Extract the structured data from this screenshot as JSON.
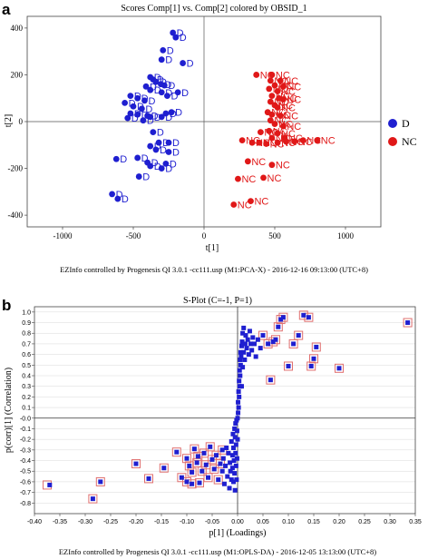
{
  "panel_a": {
    "letter": "a",
    "footer": "EZInfo controlled by Progenesis QI 3.0.1 -cc111.usp (M1:PCA-X) - 2016-12-16 09:13:00 (UTC+8)"
  },
  "panel_b": {
    "letter": "b",
    "footer": "EZInfo controlled by Progenesis QI 3.0.1 -cc111.usp (M1:OPLS-DA) - 2016-12-05 13:13:00 (UTC+8)"
  },
  "chart_data": [
    {
      "type": "scatter",
      "title": "Scores Comp[1] vs. Comp[2] colored by OBSID_1",
      "xlabel": "t[1]",
      "ylabel": "t[2]",
      "xlim": [
        -1250,
        1250
      ],
      "ylim": [
        -450,
        450
      ],
      "xticks": [
        -1000,
        -500,
        0,
        500,
        1000
      ],
      "yticks": [
        -400,
        -200,
        0,
        200,
        400
      ],
      "grid": false,
      "legend_position": "right",
      "colors": {
        "D": "#1f1fd0",
        "NC": "#e01818"
      },
      "series": [
        {
          "name": "D",
          "points": [
            [
              -220,
              380
            ],
            [
              -200,
              360
            ],
            [
              -290,
              305
            ],
            [
              -300,
              265
            ],
            [
              -150,
              250
            ],
            [
              -380,
              190
            ],
            [
              -360,
              180
            ],
            [
              -340,
              170
            ],
            [
              -305,
              160
            ],
            [
              -280,
              155
            ],
            [
              -410,
              150
            ],
            [
              -380,
              135
            ],
            [
              -300,
              125
            ],
            [
              -185,
              125
            ],
            [
              -260,
              110
            ],
            [
              -520,
              110
            ],
            [
              -470,
              100
            ],
            [
              -560,
              80
            ],
            [
              -420,
              90
            ],
            [
              -500,
              65
            ],
            [
              -440,
              55
            ],
            [
              -520,
              35
            ],
            [
              -470,
              30
            ],
            [
              -400,
              25
            ],
            [
              -540,
              15
            ],
            [
              -380,
              20
            ],
            [
              -430,
              5
            ],
            [
              -300,
              20
            ],
            [
              -270,
              35
            ],
            [
              -230,
              40
            ],
            [
              -360,
              -45
            ],
            [
              -320,
              -90
            ],
            [
              -250,
              -90
            ],
            [
              -380,
              -105
            ],
            [
              -340,
              -120
            ],
            [
              -250,
              -130
            ],
            [
              -470,
              -155
            ],
            [
              -620,
              -160
            ],
            [
              -400,
              -175
            ],
            [
              -270,
              -180
            ],
            [
              -380,
              -190
            ],
            [
              -300,
              -200
            ],
            [
              -460,
              -235
            ],
            [
              -650,
              -310
            ],
            [
              -610,
              -330
            ]
          ]
        },
        {
          "name": "NC",
          "points": [
            [
              370,
              200
            ],
            [
              480,
              200
            ],
            [
              470,
              175
            ],
            [
              540,
              175
            ],
            [
              500,
              155
            ],
            [
              560,
              150
            ],
            [
              460,
              140
            ],
            [
              520,
              130
            ],
            [
              480,
              110
            ],
            [
              530,
              100
            ],
            [
              560,
              95
            ],
            [
              470,
              85
            ],
            [
              500,
              70
            ],
            [
              520,
              60
            ],
            [
              450,
              40
            ],
            [
              480,
              30
            ],
            [
              540,
              25
            ],
            [
              470,
              5
            ],
            [
              500,
              -10
            ],
            [
              560,
              -20
            ],
            [
              400,
              -45
            ],
            [
              460,
              -40
            ],
            [
              520,
              -50
            ],
            [
              480,
              -70
            ],
            [
              570,
              -70
            ],
            [
              270,
              -80
            ],
            [
              340,
              -90
            ],
            [
              390,
              -90
            ],
            [
              440,
              -95
            ],
            [
              520,
              -90
            ],
            [
              580,
              -85
            ],
            [
              640,
              -85
            ],
            [
              700,
              -80
            ],
            [
              800,
              -80
            ],
            [
              480,
              -185
            ],
            [
              310,
              -170
            ],
            [
              240,
              -245
            ],
            [
              420,
              -240
            ],
            [
              330,
              -340
            ],
            [
              210,
              -355
            ]
          ]
        }
      ]
    },
    {
      "type": "scatter",
      "title": "S-Plot (C=-1, P=1)",
      "xlabel": "p[1] (Loadings)",
      "ylabel": "p(corr)[1] (Correlation)",
      "xlim": [
        -0.4,
        0.35
      ],
      "ylim": [
        -0.9,
        1.05
      ],
      "xticks": [
        -0.4,
        -0.35,
        -0.3,
        -0.25,
        -0.2,
        -0.15,
        -0.1,
        -0.05,
        0.0,
        0.05,
        0.1,
        0.15,
        0.2,
        0.25,
        0.3,
        0.35
      ],
      "xticklabels": [
        "-0.40",
        "-0.35",
        "-0.30",
        "-0.25",
        "-0.20",
        "-0.15",
        "-0.10",
        "-0.05",
        "0.00",
        "0.05",
        "0.10",
        "0.15",
        "0.20",
        "0.25",
        "0.30",
        "0.35"
      ],
      "yticks": [
        -0.8,
        -0.7,
        -0.6,
        -0.5,
        -0.4,
        -0.3,
        -0.2,
        -0.1,
        0.0,
        0.1,
        0.2,
        0.3,
        0.4,
        0.5,
        0.6,
        0.7,
        0.8,
        0.9,
        1.0
      ],
      "yticklabels": [
        "-0.8",
        "-0.7",
        "-0.6",
        "-0.5",
        "-0.4",
        "-0.3",
        "-0.2",
        "-0.1",
        "-0.0",
        "0.1",
        "0.2",
        "0.3",
        "0.4",
        "0.5",
        "0.6",
        "0.7",
        "0.8",
        "0.9",
        "1.0"
      ],
      "grid": true,
      "colors": {
        "points": "#1f1fd0",
        "highlight": "#e07070"
      },
      "highlighted": [
        [
          -0.375,
          -0.63
        ],
        [
          -0.285,
          -0.76
        ],
        [
          -0.27,
          -0.6
        ],
        [
          -0.2,
          -0.43
        ],
        [
          -0.175,
          -0.57
        ],
        [
          -0.145,
          -0.47
        ],
        [
          -0.12,
          -0.32
        ],
        [
          -0.11,
          -0.56
        ],
        [
          -0.1,
          -0.38
        ],
        [
          -0.095,
          -0.45
        ],
        [
          -0.09,
          -0.51
        ],
        [
          -0.085,
          -0.29
        ],
        [
          -0.08,
          -0.42
        ],
        [
          -0.078,
          -0.36
        ],
        [
          -0.075,
          -0.61
        ],
        [
          -0.07,
          -0.5
        ],
        [
          -0.066,
          -0.33
        ],
        [
          -0.062,
          -0.44
        ],
        [
          -0.058,
          -0.56
        ],
        [
          -0.054,
          -0.27
        ],
        [
          -0.05,
          -0.39
        ],
        [
          -0.046,
          -0.48
        ],
        [
          -0.042,
          -0.35
        ],
        [
          -0.038,
          -0.58
        ],
        [
          -0.034,
          -0.43
        ],
        [
          -0.03,
          -0.3
        ],
        [
          -0.09,
          -0.62
        ],
        [
          -0.1,
          -0.6
        ],
        [
          0.05,
          0.78
        ],
        [
          0.06,
          0.7
        ],
        [
          0.065,
          0.36
        ],
        [
          0.07,
          0.72
        ],
        [
          0.075,
          0.74
        ],
        [
          0.08,
          0.86
        ],
        [
          0.085,
          0.93
        ],
        [
          0.09,
          0.95
        ],
        [
          0.1,
          0.49
        ],
        [
          0.11,
          0.7
        ],
        [
          0.12,
          0.78
        ],
        [
          0.13,
          0.97
        ],
        [
          0.14,
          0.95
        ],
        [
          0.145,
          0.49
        ],
        [
          0.15,
          0.56
        ],
        [
          0.155,
          0.67
        ],
        [
          0.2,
          0.47
        ],
        [
          0.335,
          0.9
        ]
      ],
      "points": [
        [
          -0.37,
          -0.63
        ],
        [
          -0.285,
          -0.76
        ],
        [
          -0.27,
          -0.6
        ],
        [
          -0.2,
          -0.43
        ],
        [
          -0.175,
          -0.57
        ],
        [
          -0.145,
          -0.47
        ],
        [
          -0.12,
          -0.32
        ],
        [
          -0.11,
          -0.56
        ],
        [
          -0.1,
          -0.38
        ],
        [
          -0.095,
          -0.45
        ],
        [
          -0.09,
          -0.51
        ],
        [
          -0.085,
          -0.29
        ],
        [
          -0.08,
          -0.42
        ],
        [
          -0.078,
          -0.36
        ],
        [
          -0.075,
          -0.61
        ],
        [
          -0.07,
          -0.5
        ],
        [
          -0.066,
          -0.33
        ],
        [
          -0.062,
          -0.44
        ],
        [
          -0.058,
          -0.56
        ],
        [
          -0.054,
          -0.27
        ],
        [
          -0.05,
          -0.39
        ],
        [
          -0.046,
          -0.48
        ],
        [
          -0.042,
          -0.35
        ],
        [
          -0.038,
          -0.58
        ],
        [
          -0.034,
          -0.43
        ],
        [
          -0.03,
          -0.3
        ],
        [
          -0.09,
          -0.62
        ],
        [
          -0.1,
          -0.6
        ],
        [
          -0.03,
          -0.5
        ],
        [
          -0.028,
          -0.38
        ],
        [
          -0.026,
          -0.62
        ],
        [
          -0.024,
          -0.45
        ],
        [
          -0.022,
          -0.28
        ],
        [
          -0.02,
          -0.55
        ],
        [
          -0.018,
          -0.33
        ],
        [
          -0.016,
          -0.66
        ],
        [
          -0.015,
          -0.42
        ],
        [
          -0.014,
          -0.5
        ],
        [
          -0.012,
          -0.22
        ],
        [
          -0.012,
          -0.58
        ],
        [
          -0.01,
          -0.35
        ],
        [
          -0.01,
          -0.47
        ],
        [
          -0.009,
          -0.15
        ],
        [
          -0.008,
          -0.6
        ],
        [
          -0.008,
          -0.28
        ],
        [
          -0.007,
          -0.4
        ],
        [
          -0.006,
          -0.1
        ],
        [
          -0.006,
          -0.52
        ],
        [
          -0.005,
          -0.18
        ],
        [
          -0.005,
          -0.68
        ],
        [
          -0.004,
          -0.05
        ],
        [
          -0.004,
          -0.33
        ],
        [
          -0.003,
          -0.45
        ],
        [
          -0.003,
          -0.25
        ],
        [
          -0.002,
          -0.02
        ],
        [
          -0.002,
          -0.58
        ],
        [
          -0.001,
          -0.12
        ],
        [
          -0.001,
          -0.38
        ],
        [
          0.0,
          0.0
        ],
        [
          0.0,
          -0.2
        ],
        [
          0.001,
          0.05
        ],
        [
          0.001,
          0.15
        ],
        [
          0.002,
          0.1
        ],
        [
          0.002,
          0.25
        ],
        [
          0.003,
          0.2
        ],
        [
          0.003,
          0.35
        ],
        [
          0.004,
          0.3
        ],
        [
          0.004,
          0.45
        ],
        [
          0.005,
          0.4
        ],
        [
          0.005,
          0.55
        ],
        [
          0.006,
          0.5
        ],
        [
          0.006,
          0.62
        ],
        [
          0.007,
          0.58
        ],
        [
          0.008,
          0.68
        ],
        [
          0.008,
          0.3
        ],
        [
          0.009,
          0.72
        ],
        [
          0.01,
          0.48
        ],
        [
          0.01,
          0.8
        ],
        [
          0.012,
          0.62
        ],
        [
          0.012,
          0.85
        ],
        [
          0.014,
          0.55
        ],
        [
          0.015,
          0.7
        ],
        [
          0.016,
          0.78
        ],
        [
          0.018,
          0.66
        ],
        [
          0.02,
          0.74
        ],
        [
          0.022,
          0.6
        ],
        [
          0.024,
          0.82
        ],
        [
          0.026,
          0.7
        ],
        [
          0.028,
          0.64
        ],
        [
          0.03,
          0.76
        ],
        [
          0.033,
          0.7
        ],
        [
          0.036,
          0.58
        ],
        [
          0.04,
          0.74
        ],
        [
          0.045,
          0.66
        ],
        [
          0.05,
          0.78
        ],
        [
          0.06,
          0.7
        ],
        [
          0.065,
          0.36
        ],
        [
          0.07,
          0.72
        ],
        [
          0.075,
          0.74
        ],
        [
          0.08,
          0.86
        ],
        [
          0.085,
          0.93
        ],
        [
          0.09,
          0.95
        ],
        [
          0.1,
          0.49
        ],
        [
          0.11,
          0.7
        ],
        [
          0.12,
          0.78
        ],
        [
          0.13,
          0.97
        ],
        [
          0.14,
          0.95
        ],
        [
          0.145,
          0.49
        ],
        [
          0.15,
          0.56
        ],
        [
          0.155,
          0.67
        ],
        [
          0.2,
          0.47
        ],
        [
          0.335,
          0.9
        ]
      ]
    }
  ]
}
